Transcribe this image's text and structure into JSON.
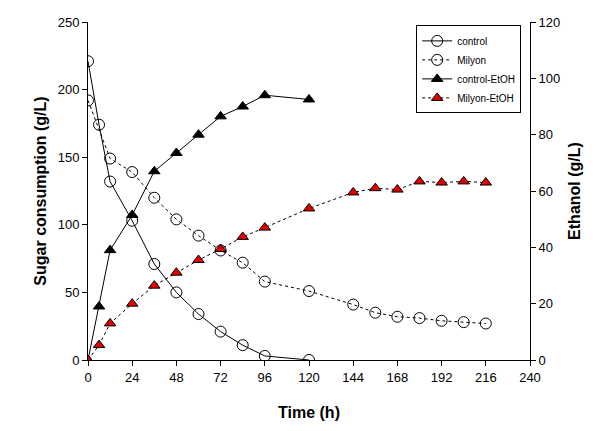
{
  "chart_data": {
    "type": "line",
    "xlabel": "Time (h)",
    "ylabel": "Sugar consumption (g/L)",
    "y2label": "Ethanol (g/L)",
    "xlim": [
      0,
      240
    ],
    "xticks": [
      0,
      24,
      48,
      72,
      96,
      120,
      144,
      168,
      192,
      216,
      240
    ],
    "ylim": [
      0,
      250
    ],
    "yticks": [
      0,
      50,
      100,
      150,
      200,
      250
    ],
    "y2lim": [
      0,
      120
    ],
    "y2ticks": [
      0,
      20,
      40,
      60,
      80,
      100,
      120
    ],
    "grid": false,
    "legend": "upper right",
    "series": [
      {
        "name": "control",
        "color": "#000000",
        "marker": "circle-open",
        "line_style": "solid",
        "x": [
          0,
          6,
          12,
          24,
          36,
          48,
          60,
          72,
          84,
          96,
          120
        ],
        "values": [
          221,
          174,
          132,
          103,
          71,
          50,
          34,
          21,
          11,
          3,
          0
        ]
      },
      {
        "name": "Milyon",
        "color": "#000000",
        "marker": "circle-open",
        "line_style": "dot",
        "x": [
          0,
          12,
          24,
          36,
          48,
          60,
          72,
          84,
          96,
          120,
          144,
          156,
          168,
          180,
          192,
          204,
          216
        ],
        "values": [
          192,
          149,
          139,
          120,
          104,
          92,
          81,
          72,
          58,
          51,
          41,
          35,
          32,
          31,
          29,
          28,
          27
        ]
      },
      {
        "name": "control-EtOH",
        "color": "#000000",
        "marker": "triangle",
        "line_style": "solid",
        "axis": "y2",
        "x": [
          0,
          6,
          12,
          24,
          36,
          48,
          60,
          72,
          84,
          96,
          120
        ],
        "values": [
          0,
          19,
          39,
          51.5,
          67,
          73.5,
          80,
          86.5,
          90,
          94,
          92.5
        ]
      },
      {
        "name": "Milyon-EtOH",
        "color": "#e00000",
        "marker": "triangle",
        "line_style": "dot",
        "axis": "y2",
        "x": [
          0,
          6,
          12,
          24,
          36,
          48,
          60,
          72,
          84,
          96,
          120,
          144,
          156,
          168,
          180,
          192,
          204,
          216
        ],
        "values": [
          0,
          5.3,
          13,
          20,
          26.4,
          31,
          35.5,
          39.4,
          43.7,
          47,
          53.8,
          59.5,
          61,
          60.5,
          63.4,
          63,
          63.4,
          63
        ]
      }
    ]
  }
}
